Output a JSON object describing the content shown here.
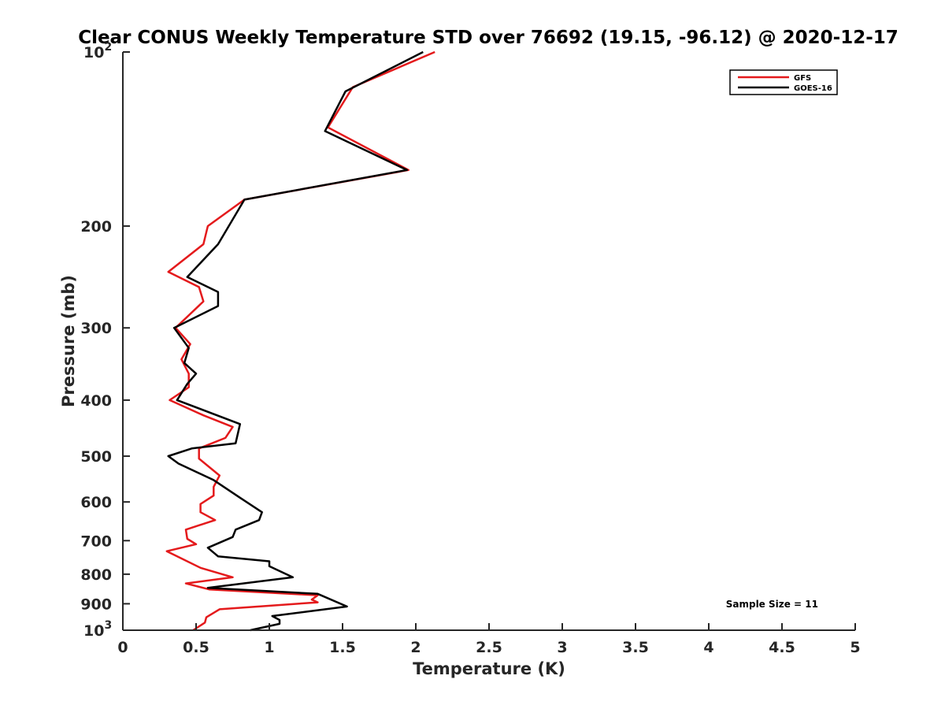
{
  "chart_data": {
    "type": "line",
    "title": "Clear CONUS Weekly Temperature STD over 76692 (19.15, -96.12) @ 2020-12-17",
    "xlabel": "Temperature (K)",
    "ylabel": "Pressure (mb)",
    "xlim": [
      0,
      5
    ],
    "ylim": [
      100,
      1000
    ],
    "yscale": "log",
    "y_reversed": true,
    "grid": false,
    "legend_position": "top-right",
    "x_ticks": [
      0,
      0.5,
      1,
      1.5,
      2,
      2.5,
      3,
      3.5,
      4,
      4.5,
      5
    ],
    "x_tick_labels": [
      "0",
      "0.5",
      "1",
      "1.5",
      "2",
      "2.5",
      "3",
      "3.5",
      "4",
      "4.5",
      "5"
    ],
    "y_ticks": [
      100,
      200,
      300,
      400,
      500,
      600,
      700,
      800,
      900,
      1000
    ],
    "y_tick_labels": [
      {
        "base": "10",
        "exp": "2"
      },
      {
        "base": "200",
        "exp": ""
      },
      {
        "base": "300",
        "exp": ""
      },
      {
        "base": "400",
        "exp": ""
      },
      {
        "base": "500",
        "exp": ""
      },
      {
        "base": "600",
        "exp": ""
      },
      {
        "base": "700",
        "exp": ""
      },
      {
        "base": "800",
        "exp": ""
      },
      {
        "base": "900",
        "exp": ""
      },
      {
        "base": "10",
        "exp": "3"
      }
    ],
    "annotation": "Sample Size = 11",
    "series": [
      {
        "name": "GFS",
        "color": "#e41a1c",
        "points": [
          [
            2.13,
            100
          ],
          [
            1.57,
            115
          ],
          [
            1.4,
            135
          ],
          [
            1.95,
            160
          ],
          [
            0.83,
            180
          ],
          [
            0.58,
            200
          ],
          [
            0.55,
            215
          ],
          [
            0.31,
            240
          ],
          [
            0.52,
            255
          ],
          [
            0.55,
            270
          ],
          [
            0.36,
            300
          ],
          [
            0.46,
            320
          ],
          [
            0.4,
            340
          ],
          [
            0.45,
            360
          ],
          [
            0.45,
            380
          ],
          [
            0.32,
            400
          ],
          [
            0.55,
            425
          ],
          [
            0.75,
            445
          ],
          [
            0.7,
            465
          ],
          [
            0.52,
            485
          ],
          [
            0.52,
            505
          ],
          [
            0.66,
            540
          ],
          [
            0.62,
            565
          ],
          [
            0.62,
            585
          ],
          [
            0.53,
            605
          ],
          [
            0.53,
            625
          ],
          [
            0.63,
            645
          ],
          [
            0.43,
            670
          ],
          [
            0.44,
            695
          ],
          [
            0.5,
            710
          ],
          [
            0.3,
            730
          ],
          [
            0.53,
            780
          ],
          [
            0.75,
            810
          ],
          [
            0.43,
            830
          ],
          [
            0.59,
            850
          ],
          [
            1.33,
            870
          ],
          [
            1.29,
            885
          ],
          [
            1.33,
            895
          ],
          [
            0.66,
            920
          ],
          [
            0.57,
            950
          ],
          [
            0.56,
            970
          ],
          [
            0.48,
            1000
          ]
        ]
      },
      {
        "name": "GOES-16",
        "color": "#000000",
        "points": [
          [
            2.05,
            100
          ],
          [
            1.52,
            117
          ],
          [
            1.38,
            137
          ],
          [
            1.94,
            160
          ],
          [
            0.83,
            180
          ],
          [
            0.65,
            215
          ],
          [
            0.44,
            245
          ],
          [
            0.65,
            260
          ],
          [
            0.65,
            275
          ],
          [
            0.35,
            300
          ],
          [
            0.45,
            325
          ],
          [
            0.42,
            345
          ],
          [
            0.5,
            360
          ],
          [
            0.44,
            375
          ],
          [
            0.37,
            400
          ],
          [
            0.8,
            440
          ],
          [
            0.77,
            475
          ],
          [
            0.47,
            485
          ],
          [
            0.31,
            500
          ],
          [
            0.38,
            515
          ],
          [
            0.62,
            550
          ],
          [
            0.8,
            590
          ],
          [
            0.95,
            625
          ],
          [
            0.93,
            645
          ],
          [
            0.77,
            670
          ],
          [
            0.75,
            690
          ],
          [
            0.58,
            720
          ],
          [
            0.65,
            745
          ],
          [
            1.0,
            760
          ],
          [
            1.0,
            775
          ],
          [
            1.16,
            810
          ],
          [
            0.58,
            845
          ],
          [
            1.33,
            865
          ],
          [
            1.53,
            910
          ],
          [
            1.02,
            945
          ],
          [
            1.07,
            960
          ],
          [
            1.07,
            975
          ],
          [
            0.87,
            1000
          ]
        ]
      }
    ]
  }
}
